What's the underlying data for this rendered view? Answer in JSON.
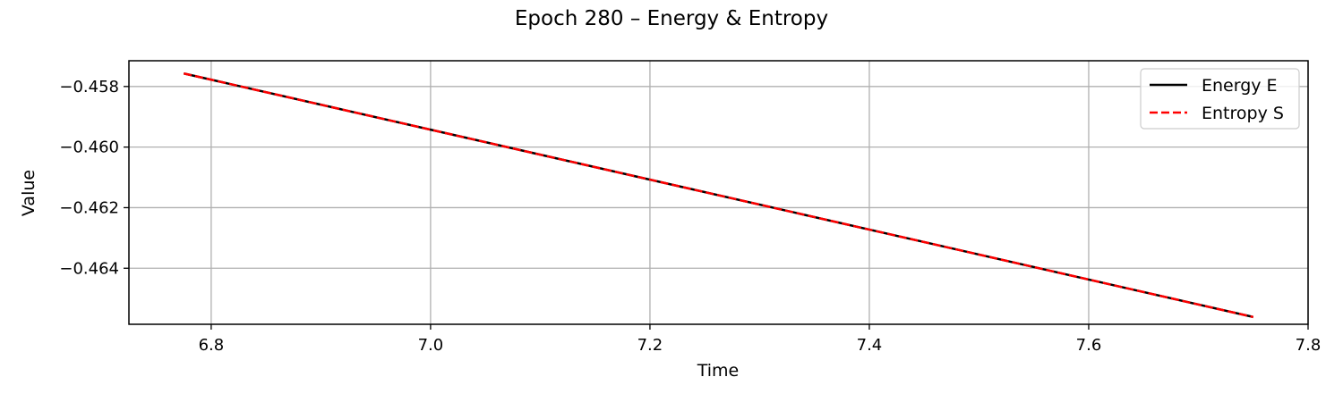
{
  "chart_data": {
    "type": "line",
    "title": "Epoch 280 – Energy & Entropy",
    "xlabel": "Time",
    "ylabel": "Value",
    "xlim": [
      6.725,
      7.8
    ],
    "ylim": [
      -0.46585,
      -0.45715
    ],
    "x_ticks": [
      6.8,
      7.0,
      7.2,
      7.4,
      7.6,
      7.8
    ],
    "x_tick_labels": [
      "6.8",
      "7.0",
      "7.2",
      "7.4",
      "7.6",
      "7.8"
    ],
    "y_ticks": [
      -0.458,
      -0.46,
      -0.462,
      -0.464
    ],
    "y_tick_labels": [
      "−0.458",
      "−0.460",
      "−0.462",
      "−0.464"
    ],
    "grid": true,
    "legend_position": "top-right",
    "series": [
      {
        "name": "Energy E",
        "color": "#000000",
        "style": "solid",
        "x": [
          6.775,
          7.75
        ],
        "y": [
          -0.45757,
          -0.46561
        ]
      },
      {
        "name": "Entropy S",
        "color": "#ff0000",
        "style": "dashed",
        "x": [
          6.775,
          7.75
        ],
        "y": [
          -0.45757,
          -0.46561
        ]
      }
    ]
  }
}
